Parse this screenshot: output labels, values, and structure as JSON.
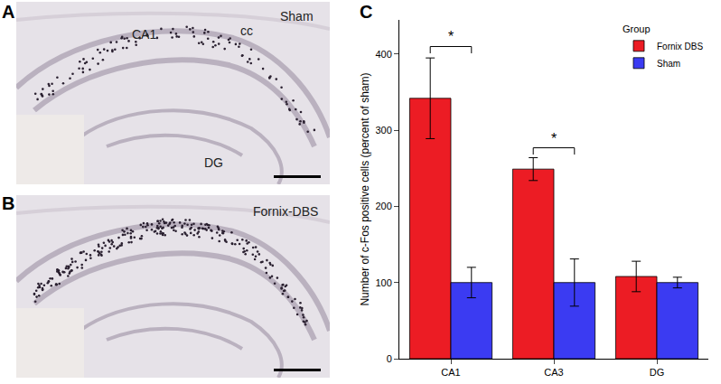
{
  "panels": [
    {
      "label": "A",
      "group": "Sham",
      "regions": [
        "CA1",
        "cc",
        "DG"
      ]
    },
    {
      "label": "B",
      "group": "Fornix-DBS",
      "regions": []
    },
    {
      "label": "C"
    }
  ],
  "chart_data": {
    "type": "bar",
    "categories": [
      "CA1",
      "CA3",
      "DG"
    ],
    "y_label": "Number of c-Fos positive cells (percent of sham)",
    "legend_title": "Group",
    "legend": "top right",
    "series": [
      {
        "name": "Fornix DBS",
        "color": "#ec1c24",
        "values": [
          342,
          249,
          108
        ],
        "errors": [
          53,
          15,
          20
        ]
      },
      {
        "name": "Sham",
        "color": "#3b3bf2",
        "values": [
          100,
          100,
          100
        ],
        "errors": [
          20,
          31,
          7
        ]
      }
    ],
    "ylim": [
      0,
      445
    ],
    "yticks": [
      0,
      100,
      200,
      300,
      400
    ],
    "grid": false,
    "significance": [
      {
        "category": "CA1",
        "y": 410,
        "label": "*"
      },
      {
        "category": "CA3",
        "y": 277,
        "label": "*"
      }
    ]
  }
}
